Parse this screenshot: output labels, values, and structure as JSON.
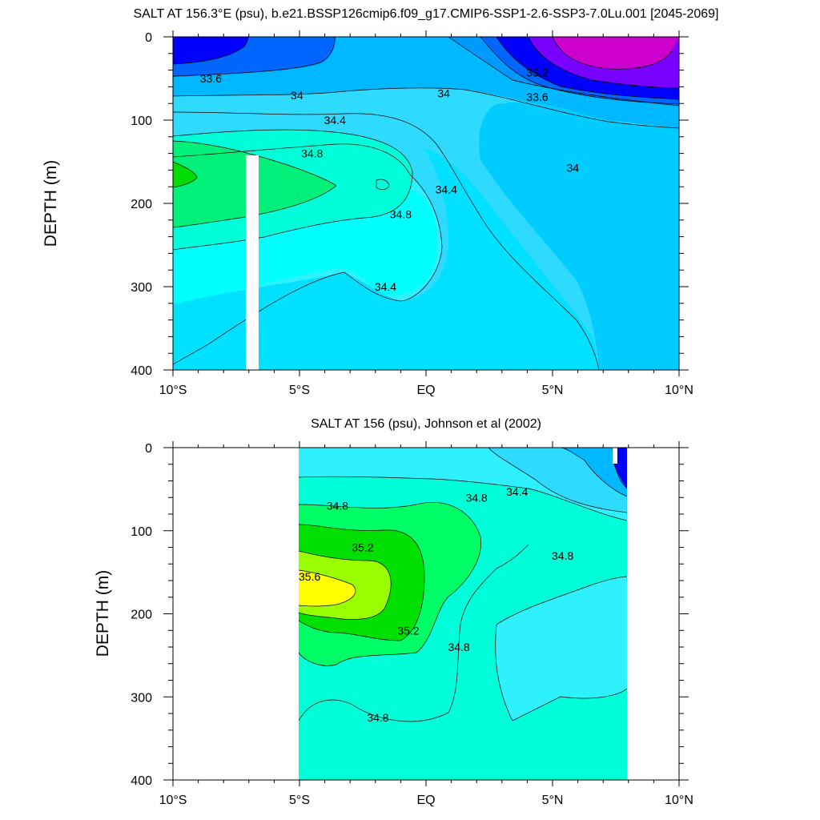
{
  "chart_data": [
    {
      "type": "contour",
      "title": "SALT AT 156.3°E (psu), b.e21.BSSP126cmip6.f09_g17.CMIP6-SSP1-2.6-SSP3-7.0Lu.001 [2045-2069]",
      "xlabel": "",
      "ylabel": "DEPTH (m)",
      "xlim": [
        -10,
        10
      ],
      "ylim": [
        400,
        0
      ],
      "y_inverted": true,
      "xticks": [
        -10,
        -5,
        0,
        5,
        10
      ],
      "xtick_labels": [
        "10°S",
        "5°S",
        "EQ",
        "5°N",
        "10°N"
      ],
      "yticks": [
        0,
        100,
        200,
        300,
        400
      ],
      "ytick_labels": [
        "0",
        "100",
        "200",
        "300",
        "400"
      ],
      "contour_labels": [
        {
          "text": "33.6",
          "lat": -8.5,
          "depth": 50
        },
        {
          "text": "34",
          "lat": -5.1,
          "depth": 70
        },
        {
          "text": "34",
          "lat": 0.7,
          "depth": 68
        },
        {
          "text": "33.2",
          "lat": 4.4,
          "depth": 43
        },
        {
          "text": "33.6",
          "lat": 4.4,
          "depth": 72
        },
        {
          "text": "34.4",
          "lat": -3.6,
          "depth": 100
        },
        {
          "text": "34.8",
          "lat": -4.5,
          "depth": 140
        },
        {
          "text": "34",
          "lat": 5.8,
          "depth": 157
        },
        {
          "text": "34.4",
          "lat": 0.8,
          "depth": 183
        },
        {
          "text": "34.8",
          "lat": -1.0,
          "depth": 213
        },
        {
          "text": "34.4",
          "lat": -1.6,
          "depth": 300
        }
      ],
      "grid": false
    },
    {
      "type": "contour",
      "title": "SALT AT 156 (psu), Johnson et al (2002)",
      "xlabel": "",
      "ylabel": "DEPTH (m)",
      "xlim": [
        -10,
        10
      ],
      "ylim": [
        400,
        0
      ],
      "y_inverted": true,
      "data_extent_lat": [
        -5,
        8
      ],
      "data_extent_depth": [
        5,
        400
      ],
      "xticks": [
        -10,
        -5,
        0,
        5,
        10
      ],
      "xtick_labels": [
        "10°S",
        "5°S",
        "EQ",
        "5°N",
        "10°N"
      ],
      "yticks": [
        0,
        100,
        200,
        300,
        400
      ],
      "ytick_labels": [
        "0",
        "100",
        "200",
        "300",
        "400"
      ],
      "contour_labels": [
        {
          "text": "34.8",
          "lat": -3.5,
          "depth": 70
        },
        {
          "text": "34.8",
          "lat": 2.0,
          "depth": 60
        },
        {
          "text": "34.4",
          "lat": 3.6,
          "depth": 53
        },
        {
          "text": "35.2",
          "lat": -2.5,
          "depth": 120
        },
        {
          "text": "35.6",
          "lat": -4.6,
          "depth": 155
        },
        {
          "text": "34.8",
          "lat": 5.4,
          "depth": 130
        },
        {
          "text": "35.2",
          "lat": -0.7,
          "depth": 220
        },
        {
          "text": "34.8",
          "lat": 1.3,
          "depth": 240
        },
        {
          "text": "34.8",
          "lat": -1.9,
          "depth": 325
        }
      ],
      "grid": false
    }
  ]
}
